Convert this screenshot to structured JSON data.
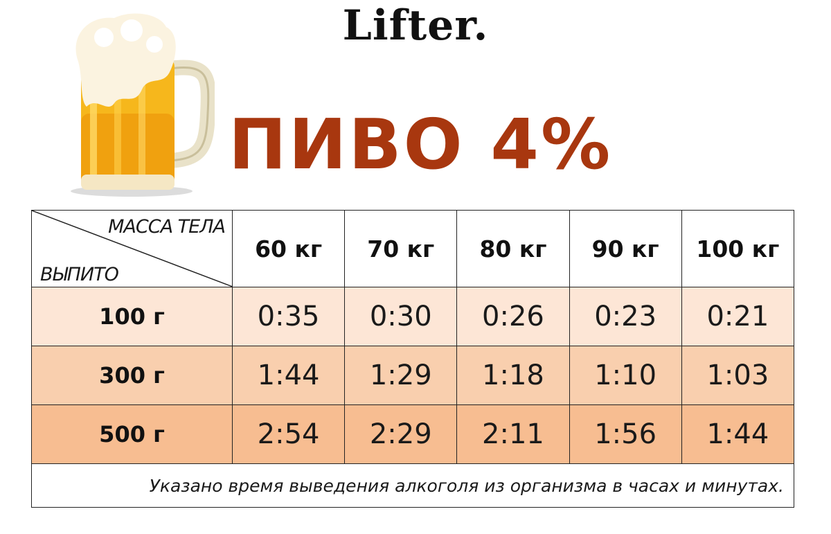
{
  "header": {
    "logo": "Lifter.",
    "title": "ПИВО 4%"
  },
  "images": {
    "mug": "beer-mug-icon"
  },
  "table": {
    "corner_top": "МАССА ТЕЛА",
    "corner_bottom": "ВЫПИТО",
    "columns": [
      "60 кг",
      "70 кг",
      "80 кг",
      "90 кг",
      "100 кг"
    ],
    "rows": [
      {
        "label": "100 г",
        "values": [
          "0:35",
          "0:30",
          "0:26",
          "0:23",
          "0:21"
        ]
      },
      {
        "label": "300 г",
        "values": [
          "1:44",
          "1:29",
          "1:18",
          "1:10",
          "1:03"
        ]
      },
      {
        "label": "500 г",
        "values": [
          "2:54",
          "2:29",
          "2:11",
          "1:56",
          "1:44"
        ]
      }
    ],
    "note": "Указано время выведения алкоголя из организма в часах и минутах."
  },
  "colors": {
    "title": "#a8370f",
    "row1": "#fde6d6",
    "row2": "#f9cfae",
    "row3": "#f7bd91"
  }
}
